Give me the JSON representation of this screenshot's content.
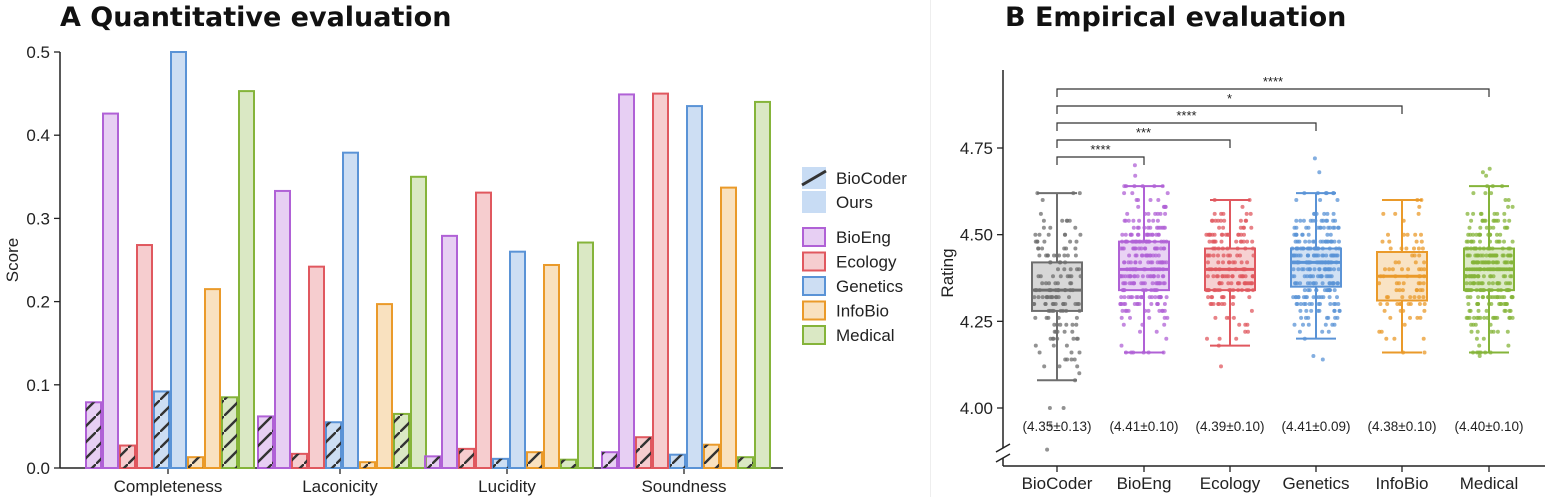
{
  "chart_data": [
    {
      "type": "bar",
      "title": "A Quantitative evaluation",
      "ylabel": "Score",
      "xlabel": "",
      "ylim": [
        0,
        0.5
      ],
      "yticks": [
        0.0,
        0.1,
        0.2,
        0.3,
        0.4,
        0.5
      ],
      "categories": [
        "Completeness",
        "Laconicity",
        "Lucidity",
        "Soundness"
      ],
      "method_legend": [
        "BioCoder",
        "Ours"
      ],
      "series": [
        {
          "name": "BioEng",
          "color": "#b061d6",
          "biocoder": [
            0.079,
            0.062,
            0.014,
            0.019
          ],
          "ours": [
            0.426,
            0.333,
            0.279,
            0.449
          ]
        },
        {
          "name": "Ecology",
          "color": "#e0585f",
          "biocoder": [
            0.027,
            0.017,
            0.023,
            0.037
          ],
          "ours": [
            0.268,
            0.242,
            0.331,
            0.45
          ]
        },
        {
          "name": "Genetics",
          "color": "#5a93d6",
          "biocoder": [
            0.092,
            0.055,
            0.011,
            0.016
          ],
          "ours": [
            0.5,
            0.379,
            0.26,
            0.435
          ]
        },
        {
          "name": "InfoBio",
          "color": "#ea9a2a",
          "biocoder": [
            0.013,
            0.007,
            0.019,
            0.028
          ],
          "ours": [
            0.215,
            0.197,
            0.244,
            0.337
          ]
        },
        {
          "name": "Medical",
          "color": "#85b43a",
          "biocoder": [
            0.085,
            0.065,
            0.01,
            0.013
          ],
          "ours": [
            0.453,
            0.35,
            0.271,
            0.44
          ]
        }
      ],
      "grid": false,
      "legend_placement": "right"
    },
    {
      "type": "box",
      "title": "B Empirical evaluation",
      "ylabel": "Rating",
      "xlabel": "",
      "ylim": [
        3.9,
        4.95
      ],
      "yticks": [
        4.0,
        4.25,
        4.5,
        4.75
      ],
      "ytick_labels": [
        "4.00",
        "4.25",
        "4.50",
        "4.75"
      ],
      "groups": [
        {
          "name": "BioCoder",
          "color": "#6e6e6e",
          "q1": 4.28,
          "median": 4.34,
          "q3": 4.42,
          "whisker_low": 4.08,
          "whisker_high": 4.62,
          "stat_label": "(4.35±0.13)",
          "n_points": 150,
          "mean": 4.35,
          "sd": 0.13,
          "out_low": [
            4.0,
            4.0,
            3.95,
            3.88
          ]
        },
        {
          "name": "BioEng",
          "color": "#b061d6",
          "q1": 4.34,
          "median": 4.4,
          "q3": 4.48,
          "whisker_low": 4.16,
          "whisker_high": 4.64,
          "stat_label": "(4.41±0.10)",
          "n_points": 260,
          "mean": 4.41,
          "sd": 0.1,
          "out_high": [
            4.7,
            4.67
          ]
        },
        {
          "name": "Ecology",
          "color": "#e0585f",
          "q1": 4.34,
          "median": 4.4,
          "q3": 4.46,
          "whisker_low": 4.18,
          "whisker_high": 4.6,
          "stat_label": "(4.39±0.10)",
          "n_points": 170,
          "mean": 4.39,
          "sd": 0.1,
          "out_low": [
            4.12
          ]
        },
        {
          "name": "Genetics",
          "color": "#5a93d6",
          "q1": 4.35,
          "median": 4.42,
          "q3": 4.46,
          "whisker_low": 4.2,
          "whisker_high": 4.62,
          "stat_label": "(4.41±0.09)",
          "n_points": 260,
          "mean": 4.41,
          "sd": 0.09,
          "out_low": [
            4.15,
            4.14
          ],
          "out_high": [
            4.72,
            4.68
          ]
        },
        {
          "name": "InfoBio",
          "color": "#ea9a2a",
          "q1": 4.31,
          "median": 4.38,
          "q3": 4.45,
          "whisker_low": 4.16,
          "whisker_high": 4.6,
          "stat_label": "(4.38±0.10)",
          "n_points": 90,
          "mean": 4.38,
          "sd": 0.1
        },
        {
          "name": "Medical",
          "color": "#85b43a",
          "q1": 4.34,
          "median": 4.4,
          "q3": 4.46,
          "whisker_low": 4.16,
          "whisker_high": 4.64,
          "stat_label": "(4.40±0.10)",
          "n_points": 300,
          "mean": 4.4,
          "sd": 0.1,
          "out_low": [
            4.15
          ],
          "out_high": [
            4.69,
            4.68,
            4.67
          ]
        }
      ],
      "significance": [
        {
          "from": "BioCoder",
          "to": "BioEng",
          "label": "****"
        },
        {
          "from": "BioCoder",
          "to": "Ecology",
          "label": "***"
        },
        {
          "from": "BioCoder",
          "to": "Genetics",
          "label": "****"
        },
        {
          "from": "BioCoder",
          "to": "InfoBio",
          "label": "*"
        },
        {
          "from": "BioCoder",
          "to": "Medical",
          "label": "****"
        }
      ],
      "axis_break": true,
      "grid": false
    }
  ]
}
